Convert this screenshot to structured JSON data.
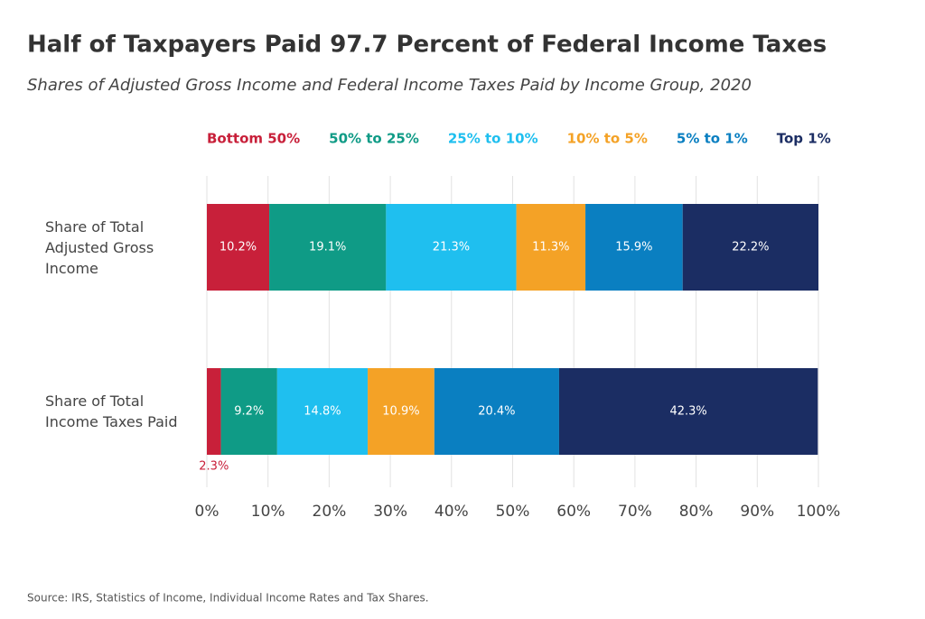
{
  "chart_data": {
    "type": "stacked-bar-horizontal",
    "title": "Half of Taxpayers Paid 97.7 Percent of Federal Income Taxes",
    "subtitle": "Shares of Adjusted Gross Income and Federal Income Taxes Paid by Income Group, 2020",
    "source": "Source: IRS, Statistics of Income, Individual Income Rates and Tax Shares.",
    "categories": [
      "Share of Total Adjusted Gross Income",
      "Share of Total Income Taxes Paid"
    ],
    "series": [
      {
        "name": "Bottom 50%",
        "color": "#c8203a",
        "values": [
          10.2,
          2.3
        ],
        "value_labels": [
          "10.2%",
          "2.3%"
        ]
      },
      {
        "name": "50% to 25%",
        "color": "#0f9b86",
        "values": [
          19.1,
          9.2
        ],
        "value_labels": [
          "19.1%",
          "9.2%"
        ]
      },
      {
        "name": "25% to 10%",
        "color": "#1fbfef",
        "values": [
          21.3,
          14.8
        ],
        "value_labels": [
          "21.3%",
          "14.8%"
        ]
      },
      {
        "name": "10% to 5%",
        "color": "#f4a226",
        "values": [
          11.3,
          10.9
        ],
        "value_labels": [
          "11.3%",
          "10.9%"
        ]
      },
      {
        "name": "5% to 1%",
        "color": "#0a7fc1",
        "values": [
          15.9,
          20.4
        ],
        "value_labels": [
          "15.9%",
          "20.4%"
        ]
      },
      {
        "name": "Top 1%",
        "color": "#1b2d63",
        "values": [
          22.2,
          42.3
        ],
        "value_labels": [
          "22.2%",
          "42.3%"
        ]
      }
    ],
    "xlim": [
      0,
      100
    ],
    "xticks": [
      {
        "value": 0,
        "label": "0%"
      },
      {
        "value": 10,
        "label": "10%"
      },
      {
        "value": 20,
        "label": "20%"
      },
      {
        "value": 30,
        "label": "30%"
      },
      {
        "value": 40,
        "label": "40%"
      },
      {
        "value": 50,
        "label": "50%"
      },
      {
        "value": 60,
        "label": "60%"
      },
      {
        "value": 70,
        "label": "70%"
      },
      {
        "value": 80,
        "label": "80%"
      },
      {
        "value": 90,
        "label": "90%"
      },
      {
        "value": 100,
        "label": "100%"
      }
    ],
    "grid": true
  }
}
